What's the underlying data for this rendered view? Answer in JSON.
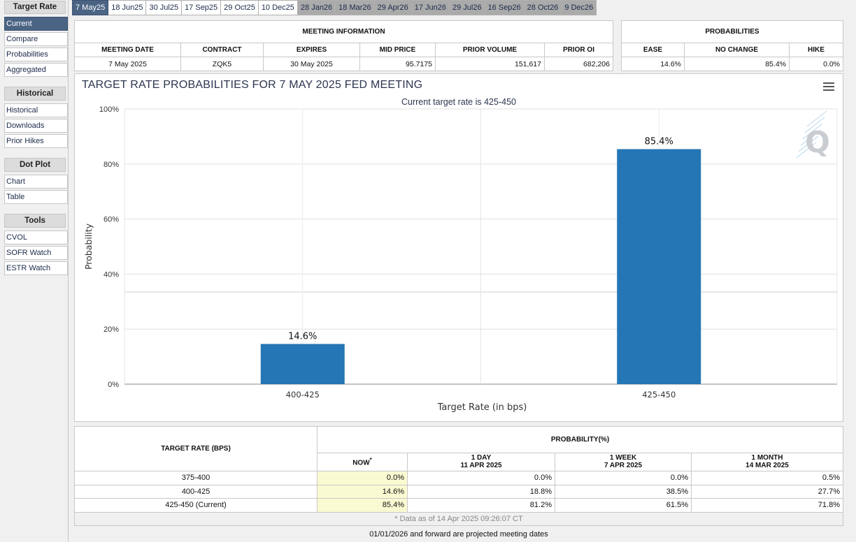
{
  "sidebar": {
    "groups": [
      {
        "title": "Target Rate",
        "items": [
          "Current",
          "Compare",
          "Probabilities",
          "Aggregated"
        ]
      },
      {
        "title": "Historical",
        "items": [
          "Historical",
          "Downloads",
          "Prior Hikes"
        ]
      },
      {
        "title": "Dot Plot",
        "items": [
          "Chart",
          "Table"
        ]
      },
      {
        "title": "Tools",
        "items": [
          "CVOL",
          "SOFR Watch",
          "ESTR Watch"
        ]
      }
    ],
    "active_item": "Current"
  },
  "tabs": [
    "7 May25",
    "18 Jun25",
    "30 Jul25",
    "17 Sep25",
    "29 Oct25",
    "10 Dec25",
    "28 Jan26",
    "18 Mar26",
    "29 Apr26",
    "17 Jun26",
    "29 Jul26",
    "16 Sep26",
    "28 Oct26",
    "9 Dec26"
  ],
  "meeting_info": {
    "caption": "MEETING INFORMATION",
    "headers": [
      "MEETING DATE",
      "CONTRACT",
      "EXPIRES",
      "MID PRICE",
      "PRIOR VOLUME",
      "PRIOR OI"
    ],
    "values": [
      "7 May 2025",
      "ZQK5",
      "30 May 2025",
      "95.7175",
      "151,617",
      "682,206"
    ]
  },
  "probabilities": {
    "caption": "PROBABILITIES",
    "headers": [
      "EASE",
      "NO CHANGE",
      "HIKE"
    ],
    "values": [
      "14.6%",
      "85.4%",
      "0.0%"
    ]
  },
  "chart": {
    "menu_icon": "hamburger-menu-icon",
    "watermark": "Q"
  },
  "chart_data": {
    "type": "bar",
    "title": "TARGET RATE PROBABILITIES FOR 7 MAY 2025 FED MEETING",
    "subtitle": "Current target rate is 425-450",
    "xlabel": "Target Rate (in bps)",
    "ylabel": "Probability",
    "categories": [
      "400-425",
      "425-450"
    ],
    "values": [
      14.6,
      85.4
    ],
    "data_labels": [
      "14.6%",
      "85.4%"
    ],
    "ylim": [
      0,
      100
    ],
    "yticks": [
      "0%",
      "20%",
      "40%",
      "60%",
      "80%",
      "100%"
    ],
    "bar_color": "#2476b4",
    "grid": true
  },
  "bottom_table": {
    "col_target": "TARGET RATE (BPS)",
    "col_prob": "PROBABILITY(%)",
    "subcols": [
      {
        "line1": "NOW",
        "line2": ""
      },
      {
        "line1": "1 DAY",
        "line2": "11 APR 2025"
      },
      {
        "line1": "1 WEEK",
        "line2": "7 APR 2025"
      },
      {
        "line1": "1 MONTH",
        "line2": "14 MAR 2025"
      }
    ],
    "now_mark": "*",
    "rows": [
      {
        "rate": "375-400",
        "now": "0.0%",
        "day": "0.0%",
        "week": "0.0%",
        "month": "0.5%"
      },
      {
        "rate": "400-425",
        "now": "14.6%",
        "day": "18.8%",
        "week": "38.5%",
        "month": "27.7%"
      },
      {
        "rate": "425-450 (Current)",
        "now": "85.4%",
        "day": "81.2%",
        "week": "61.5%",
        "month": "71.8%"
      }
    ],
    "data_note": "* Data as of 14 Apr 2025 09:26:07 CT"
  },
  "footer_note": "01/01/2026 and forward are projected meeting dates"
}
